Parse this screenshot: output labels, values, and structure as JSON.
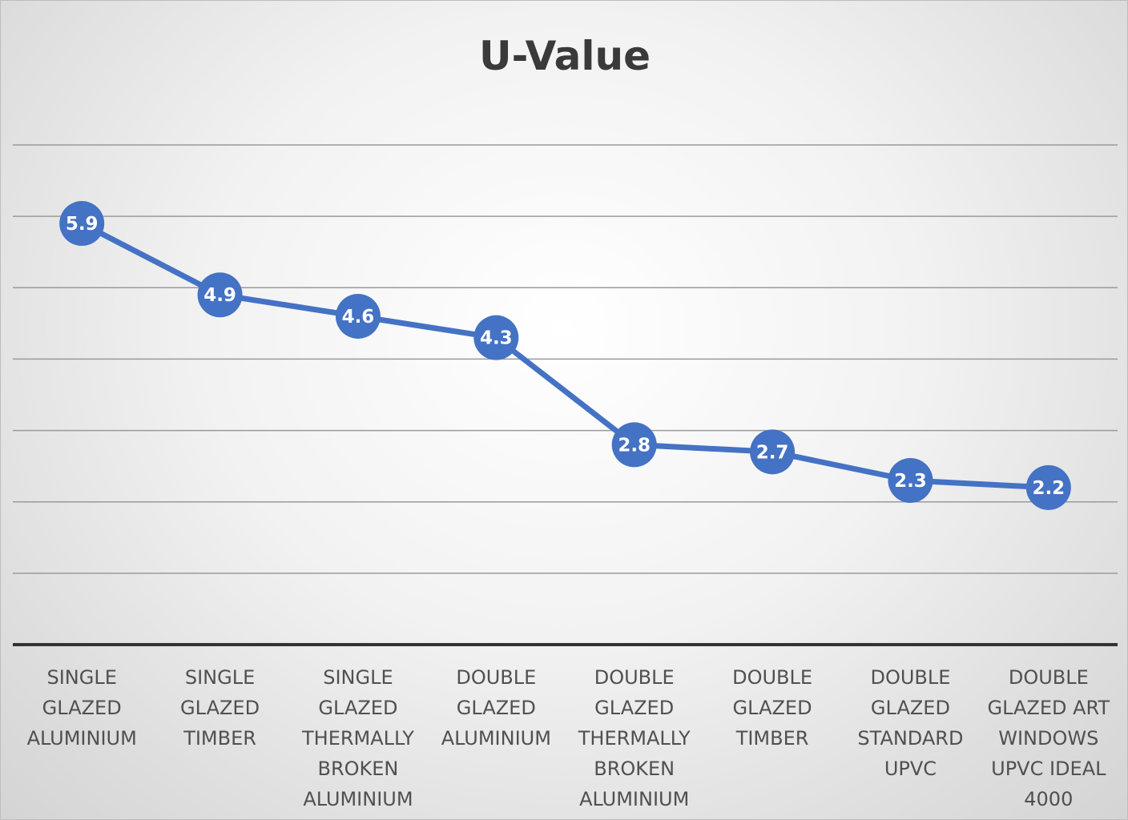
{
  "chart_data": {
    "type": "line",
    "title": "U-Value",
    "xlabel": "",
    "ylabel": "",
    "categories": [
      [
        "SINGLE",
        "GLAZED",
        "ALUMINIUM"
      ],
      [
        "SINGLE",
        "GLAZED",
        "TIMBER"
      ],
      [
        "SINGLE",
        "GLAZED",
        "THERMALLY",
        "BROKEN",
        "ALUMINIUM"
      ],
      [
        "DOUBLE",
        "GLAZED",
        "ALUMINIUM"
      ],
      [
        "DOUBLE",
        "GLAZED",
        "THERMALLY",
        "BROKEN",
        "ALUMINIUM"
      ],
      [
        "DOUBLE",
        "GLAZED",
        "TIMBER"
      ],
      [
        "DOUBLE",
        "GLAZED",
        "STANDARD",
        "UPVC"
      ],
      [
        "DOUBLE",
        "GLAZED ART",
        "WINDOWS",
        "UPVC IDEAL",
        "4000"
      ]
    ],
    "series": [
      {
        "values": [
          5.9,
          4.9,
          4.6,
          4.3,
          2.8,
          2.7,
          2.3,
          2.2
        ],
        "color": "#4472C4"
      }
    ],
    "ylim": [
      0,
      7
    ],
    "y_gridlines": [
      1,
      2,
      3,
      4,
      5,
      6,
      7
    ],
    "y_tick_labels_shown": false,
    "grid": true,
    "legend": "none",
    "data_labels": true
  }
}
